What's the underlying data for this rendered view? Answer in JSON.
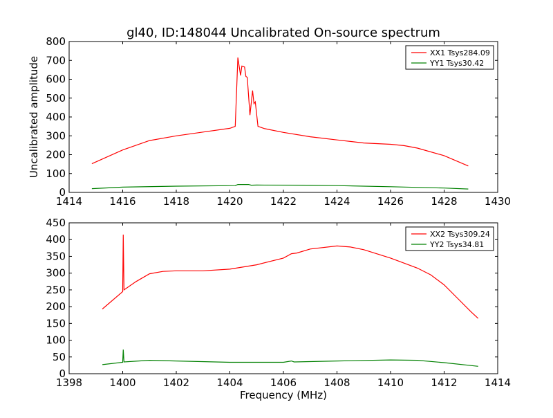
{
  "chart_data": [
    {
      "type": "line",
      "title": "gl40, ID:148044 Uncalibrated On-source spectrum",
      "xlabel": "",
      "ylabel": "Uncalibrated amplitude",
      "xlim": [
        1414,
        1430
      ],
      "ylim": [
        0,
        800
      ],
      "xticks": [
        1414,
        1416,
        1418,
        1420,
        1422,
        1424,
        1426,
        1428,
        1430
      ],
      "yticks": [
        0,
        100,
        200,
        300,
        400,
        500,
        600,
        700,
        800
      ],
      "legend_position": "top-right",
      "series": [
        {
          "name": "XX1 Tsys284.09",
          "color": "#ff0000",
          "x": [
            1414.85,
            1416,
            1417,
            1418,
            1419,
            1420,
            1420.2,
            1420.3,
            1420.4,
            1420.45,
            1420.55,
            1420.6,
            1420.65,
            1420.75,
            1420.85,
            1420.9,
            1420.95,
            1421.05,
            1421.3,
            1422,
            1423,
            1424,
            1425,
            1426,
            1426.5,
            1427,
            1428,
            1428.9
          ],
          "y": [
            152,
            225,
            275,
            300,
            320,
            340,
            350,
            715,
            620,
            670,
            665,
            615,
            610,
            410,
            540,
            470,
            480,
            350,
            338,
            318,
            295,
            278,
            262,
            255,
            248,
            235,
            195,
            140
          ]
        },
        {
          "name": "YY1 Tsys30.42",
          "color": "#008000",
          "x": [
            1414.85,
            1416,
            1418,
            1420.2,
            1420.3,
            1420.7,
            1420.8,
            1421,
            1423,
            1424,
            1426,
            1428,
            1428.9
          ],
          "y": [
            20,
            28,
            33,
            36,
            42,
            42,
            38,
            39,
            38,
            36,
            30,
            23,
            18
          ]
        }
      ]
    },
    {
      "type": "line",
      "title": "",
      "xlabel": "Frequency (MHz)",
      "ylabel": "",
      "xlim": [
        1398,
        1414
      ],
      "ylim": [
        0,
        450
      ],
      "xticks": [
        1398,
        1400,
        1402,
        1404,
        1406,
        1408,
        1410,
        1412,
        1414
      ],
      "yticks": [
        0,
        50,
        100,
        150,
        200,
        250,
        300,
        350,
        400,
        450
      ],
      "legend_position": "top-right",
      "series": [
        {
          "name": "XX2 Tsys309.24",
          "color": "#ff0000",
          "x": [
            1399.24,
            1400,
            1400.02,
            1400.05,
            1400.5,
            1401,
            1401.5,
            1402,
            1403,
            1404,
            1405,
            1406,
            1406.3,
            1406.5,
            1407,
            1408,
            1408.5,
            1409,
            1410,
            1411,
            1411.5,
            1412,
            1412.5,
            1413,
            1413.27
          ],
          "y": [
            193,
            245,
            415,
            250,
            275,
            298,
            305,
            307,
            307,
            312,
            325,
            345,
            358,
            360,
            372,
            381,
            378,
            370,
            345,
            315,
            295,
            265,
            225,
            185,
            165
          ]
        },
        {
          "name": "YY2 Tsys34.81",
          "color": "#008000",
          "x": [
            1399.24,
            1400,
            1400.02,
            1400.05,
            1401,
            1402,
            1404,
            1406,
            1406.3,
            1406.4,
            1408,
            1410,
            1411,
            1412,
            1413.27
          ],
          "y": [
            27,
            34,
            72,
            35,
            40,
            38,
            34,
            34,
            38,
            35,
            38,
            41,
            40,
            33,
            22
          ]
        }
      ]
    }
  ]
}
